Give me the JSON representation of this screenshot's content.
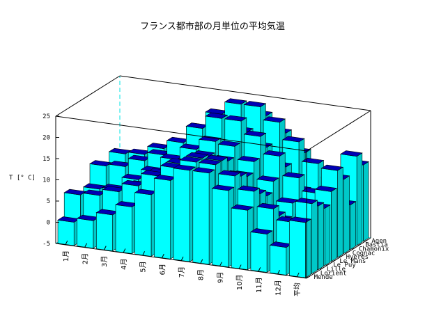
{
  "chart_data": {
    "type": "bar3d",
    "title": "フランス都市部の月単位の平均気温",
    "zlabel": "T [° C]",
    "zlim": [
      -5,
      25
    ],
    "zticks": [
      -5,
      0,
      5,
      10,
      15,
      20,
      25
    ],
    "months": [
      "1月",
      "2月",
      "3月",
      "4月",
      "5月",
      "6月",
      "7月",
      "8月",
      "9月",
      "10月",
      "11月",
      "12月",
      "平均"
    ],
    "cities": [
      "Mende",
      "Lorient",
      "Lille",
      "Le Puy",
      "Le Mans",
      "Hyères",
      "Cognac",
      "Chamonix",
      "Bastia",
      "Agen"
    ],
    "series": [
      {
        "name": "Mende",
        "values": [
          0.5,
          1.5,
          3.5,
          6,
          9.5,
          13.5,
          16.5,
          16.5,
          13,
          9,
          4,
          1.5,
          8
        ]
      },
      {
        "name": "Lorient",
        "values": [
          6,
          6.5,
          8,
          10,
          13,
          15.5,
          17.5,
          17.5,
          15.5,
          12.5,
          9,
          6.5,
          11.5
        ]
      },
      {
        "name": "Lille",
        "values": [
          3,
          3.5,
          6.5,
          9,
          12.5,
          15.5,
          17.5,
          17.5,
          14.5,
          11,
          6.5,
          4,
          10
        ]
      },
      {
        "name": "Le Puy",
        "values": [
          1,
          2,
          4.5,
          7,
          11,
          14.5,
          17,
          16.5,
          13.5,
          9.5,
          4.5,
          1.5,
          8.5
        ]
      },
      {
        "name": "Le Mans",
        "values": [
          4.5,
          5,
          8,
          10.5,
          14,
          17,
          19.5,
          19,
          16,
          12,
          7.5,
          5,
          11.5
        ]
      },
      {
        "name": "Hyères",
        "values": [
          9,
          9.5,
          11.5,
          13.5,
          17,
          21,
          24,
          24,
          21,
          17,
          12.5,
          9.5,
          15.5
        ]
      },
      {
        "name": "Cognac",
        "values": [
          5.5,
          6.5,
          9,
          11,
          15,
          18,
          20.5,
          20.5,
          17.5,
          13.5,
          8.5,
          6,
          12.5
        ]
      },
      {
        "name": "Chamonix",
        "values": [
          -3.5,
          -2.5,
          1,
          4.5,
          9,
          12.5,
          15,
          14.5,
          11,
          6.5,
          1,
          -2.5,
          5.5
        ]
      },
      {
        "name": "Bastia",
        "values": [
          9,
          9.5,
          11.5,
          13.5,
          17.5,
          21.5,
          24.5,
          24.5,
          21.5,
          17.5,
          13,
          10,
          16
        ]
      },
      {
        "name": "Agen",
        "values": [
          5.5,
          7,
          9.5,
          12,
          15.5,
          19,
          21.5,
          21.5,
          18,
          14,
          9,
          6,
          13
        ]
      }
    ],
    "colors": {
      "bar_face": "#00ffff",
      "bar_top": "#0000b4",
      "edge": "#000000",
      "hidden_axis": "#00e5e5"
    }
  }
}
